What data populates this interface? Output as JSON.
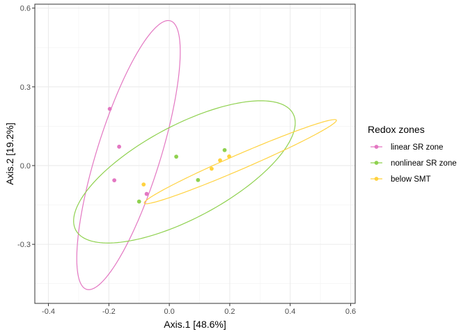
{
  "chart_data": {
    "type": "scatter",
    "xlabel": "Axis.1   [48.6%]",
    "ylabel": "Axis.2   [19.2%]",
    "xlim": [
      -0.445,
      0.615
    ],
    "ylim": [
      -0.525,
      0.615
    ],
    "x_ticks": [
      -0.4,
      -0.2,
      0.0,
      0.2,
      0.4,
      0.6
    ],
    "x_tick_labels": [
      "-0.4",
      "-0.2",
      "0.0",
      "0.2",
      "0.4",
      "0.6"
    ],
    "y_ticks": [
      -0.3,
      0.0,
      0.3,
      0.6
    ],
    "y_tick_labels": [
      "-0.3",
      "0.0",
      "0.3",
      "0.6"
    ],
    "grid": true,
    "legend": {
      "title": "Redox zones",
      "placement": "right"
    },
    "series": [
      {
        "name": "linear SR zone",
        "color": "#E377C2",
        "points": [
          {
            "x": -0.197,
            "y": 0.216
          },
          {
            "x": -0.166,
            "y": 0.072
          },
          {
            "x": -0.182,
            "y": -0.056
          },
          {
            "x": -0.075,
            "y": -0.108
          }
        ],
        "ellipse": {
          "cx": -0.135,
          "cy": 0.04,
          "a": 0.53,
          "b": 0.106,
          "angle_deg": 75
        }
      },
      {
        "name": "nonlinear SR zone",
        "color": "#8FD14F",
        "points": [
          {
            "x": 0.023,
            "y": 0.034
          },
          {
            "x": 0.095,
            "y": -0.055
          },
          {
            "x": -0.1,
            "y": -0.137
          },
          {
            "x": 0.183,
            "y": 0.059
          }
        ],
        "ellipse": {
          "cx": 0.05,
          "cy": -0.024,
          "a": 0.423,
          "b": 0.17,
          "angle_deg": 33
        }
      },
      {
        "name": "below SMT",
        "color": "#FFD23F",
        "points": [
          {
            "x": -0.085,
            "y": -0.072
          },
          {
            "x": 0.14,
            "y": -0.012
          },
          {
            "x": 0.168,
            "y": 0.02
          },
          {
            "x": 0.198,
            "y": 0.035
          }
        ],
        "ellipse": {
          "cx": 0.235,
          "cy": 0.015,
          "a": 0.355,
          "b": 0.028,
          "angle_deg": 26.5
        }
      }
    ]
  }
}
